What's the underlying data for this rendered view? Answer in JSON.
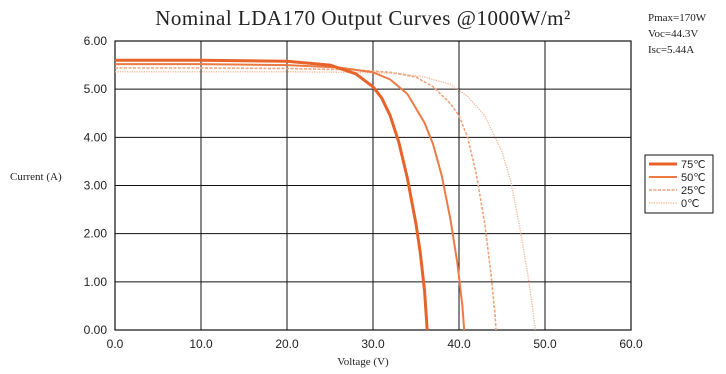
{
  "title": "Nominal LDA170 Output Curves @1000W/m²",
  "specs": {
    "pmax": "Pmax=170W",
    "voc": "Voc=44.3V",
    "isc": "Isc=5.44A"
  },
  "axis_labels": {
    "y": "Current (A)",
    "x": "Voltage (V)"
  },
  "colors": {
    "c75": "#e8632a",
    "c50": "#ec7a45",
    "c25": "#f0a27b",
    "c0": "#f5b898"
  },
  "chart_data": {
    "type": "line",
    "title": "Nominal LDA170 Output Curves @1000W/m²",
    "xlabel": "Voltage (V)",
    "ylabel": "Current (A)",
    "xlim": [
      0,
      60
    ],
    "ylim": [
      0,
      6
    ],
    "x_ticks": [
      "0.0",
      "10.0",
      "20.0",
      "30.0",
      "40.0",
      "50.0",
      "60.0"
    ],
    "y_ticks": [
      "0.00",
      "1.00",
      "2.00",
      "3.00",
      "4.00",
      "5.00",
      "6.00"
    ],
    "grid": true,
    "legend_position": "right",
    "series": [
      {
        "name": "75℃",
        "color": "#e8632a",
        "style": "solid-thick",
        "points": [
          [
            0,
            5.6
          ],
          [
            10,
            5.6
          ],
          [
            20,
            5.58
          ],
          [
            25,
            5.5
          ],
          [
            28,
            5.32
          ],
          [
            30,
            5.05
          ],
          [
            31,
            4.82
          ],
          [
            32,
            4.45
          ],
          [
            33,
            3.9
          ],
          [
            34,
            3.15
          ],
          [
            35,
            2.2
          ],
          [
            35.5,
            1.6
          ],
          [
            36,
            0.8
          ],
          [
            36.3,
            0.0
          ]
        ]
      },
      {
        "name": "50℃",
        "color": "#ec7a45",
        "style": "solid",
        "points": [
          [
            0,
            5.52
          ],
          [
            10,
            5.52
          ],
          [
            20,
            5.5
          ],
          [
            26,
            5.45
          ],
          [
            30,
            5.35
          ],
          [
            32,
            5.2
          ],
          [
            34,
            4.9
          ],
          [
            36,
            4.3
          ],
          [
            37,
            3.85
          ],
          [
            38,
            3.2
          ],
          [
            39,
            2.3
          ],
          [
            39.8,
            1.4
          ],
          [
            40.4,
            0.5
          ],
          [
            40.6,
            0.0
          ]
        ]
      },
      {
        "name": "25℃",
        "color": "#f0a27b",
        "style": "dashed",
        "points": [
          [
            0,
            5.44
          ],
          [
            10,
            5.44
          ],
          [
            20,
            5.43
          ],
          [
            28,
            5.4
          ],
          [
            32,
            5.35
          ],
          [
            35,
            5.25
          ],
          [
            37,
            5.05
          ],
          [
            39,
            4.7
          ],
          [
            40,
            4.45
          ],
          [
            41,
            4.0
          ],
          [
            42,
            3.25
          ],
          [
            43,
            2.2
          ],
          [
            43.7,
            1.2
          ],
          [
            44.2,
            0.3
          ],
          [
            44.3,
            0.0
          ]
        ]
      },
      {
        "name": "0℃",
        "color": "#f5b898",
        "style": "dotted",
        "points": [
          [
            0,
            5.36
          ],
          [
            10,
            5.36
          ],
          [
            20,
            5.36
          ],
          [
            28,
            5.35
          ],
          [
            33,
            5.33
          ],
          [
            36,
            5.25
          ],
          [
            39,
            5.1
          ],
          [
            41,
            4.85
          ],
          [
            43,
            4.45
          ],
          [
            45,
            3.7
          ],
          [
            46,
            3.1
          ],
          [
            47,
            2.2
          ],
          [
            48,
            1.15
          ],
          [
            48.6,
            0.4
          ],
          [
            48.9,
            0.0
          ]
        ]
      }
    ]
  }
}
